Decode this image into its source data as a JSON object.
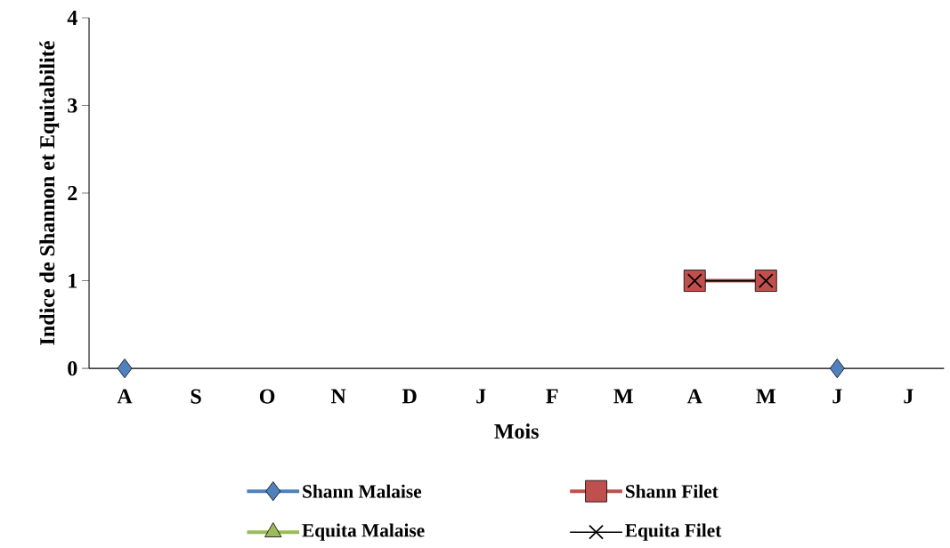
{
  "chart_data": {
    "type": "line",
    "xlabel": "Mois",
    "ylabel": "Indice de Shannon et Equitabilité",
    "categories": [
      "A",
      "S",
      "O",
      "N",
      "D",
      "J",
      "F",
      "M",
      "A",
      "M",
      "J",
      "J"
    ],
    "ylim": [
      0,
      4
    ],
    "yticks": [
      0,
      1,
      2,
      3,
      4
    ],
    "grid": false,
    "legend": "bottom",
    "line_style": "solid",
    "series": [
      {
        "name": "Shann  Malaise",
        "type": "scatter",
        "color": "#4f81bd",
        "marker": "diamond",
        "values": [
          0,
          null,
          null,
          null,
          null,
          null,
          null,
          null,
          null,
          null,
          0,
          null
        ]
      },
      {
        "name": "Shann  Filet",
        "color": "#c0504d",
        "marker": "square",
        "values": [
          null,
          null,
          null,
          null,
          null,
          null,
          null,
          null,
          1,
          1,
          null,
          null
        ]
      },
      {
        "name": "Equita  Malaise",
        "color": "#9bbb59",
        "marker": "triangle",
        "values": [
          null,
          null,
          null,
          null,
          null,
          null,
          null,
          null,
          null,
          null,
          null,
          null
        ]
      },
      {
        "name": "Equita  Filet",
        "color": "#000000",
        "marker": "cross",
        "values": [
          null,
          null,
          null,
          null,
          null,
          null,
          null,
          null,
          1,
          1,
          null,
          null
        ]
      }
    ]
  }
}
